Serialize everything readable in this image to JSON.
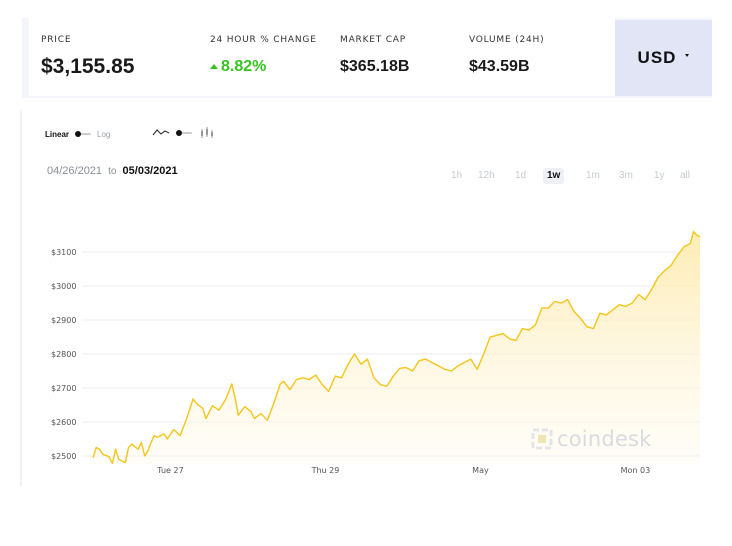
{
  "stats": {
    "price_label": "PRICE",
    "price_value": "$3,155.85",
    "change_label": "24 HOUR % CHANGE",
    "change_value": "8.82%",
    "cap_label": "MARKET CAP",
    "cap_value": "$365.18B",
    "volume_label": "VOLUME (24H)",
    "volume_value": "$43.59B",
    "currency": "USD"
  },
  "controls": {
    "scale_linear": "Linear",
    "scale_log": "Log",
    "date_start": "04/26/2021",
    "date_to": "to",
    "date_end": "05/03/2021",
    "ranges": [
      "1h",
      "12h",
      "1d",
      "1w",
      "1m",
      "3m",
      "1y",
      "all"
    ],
    "active_range": "1w",
    "watermark": "coindesk"
  },
  "colors": {
    "line": "#f5c518",
    "fill_top": "#fde9a6",
    "up": "#36c21f",
    "currency_bg": "#e1e5f5"
  },
  "chart_data": {
    "type": "area",
    "title": "",
    "xlabel": "",
    "ylabel": "",
    "ylim": [
      2470,
      3200
    ],
    "grid": true,
    "y_ticks": [
      2500,
      2600,
      2700,
      2800,
      2900,
      3000,
      3100
    ],
    "y_tick_labels": [
      "$2500",
      "$2600",
      "$2700",
      "$2800",
      "$2900",
      "$3000",
      "$3100"
    ],
    "x_range": [
      "2021-04-26T00:00",
      "2021-05-03T20:00"
    ],
    "x_ticks": [
      {
        "label": "Tue 27",
        "t": "2021-04-27T00:00"
      },
      {
        "label": "Thu 29",
        "t": "2021-04-29T00:00"
      },
      {
        "label": "May",
        "t": "2021-05-01T00:00"
      },
      {
        "label": "Mon 03",
        "t": "2021-05-03T00:00"
      }
    ],
    "series": [
      {
        "name": "",
        "x": [
          "2021-04-26T00:00",
          "2021-04-26T01:00",
          "2021-04-26T02:00",
          "2021-04-26T03:00",
          "2021-04-26T05:00",
          "2021-04-26T06:00",
          "2021-04-26T07:00",
          "2021-04-26T08:00",
          "2021-04-26T09:00",
          "2021-04-26T10:00",
          "2021-04-26T11:00",
          "2021-04-26T12:00",
          "2021-04-26T14:00",
          "2021-04-26T15:00",
          "2021-04-26T16:00",
          "2021-04-26T17:00",
          "2021-04-26T18:00",
          "2021-04-26T19:00",
          "2021-04-26T20:00",
          "2021-04-26T22:00",
          "2021-04-26T23:00",
          "2021-04-27T01:00",
          "2021-04-27T03:00",
          "2021-04-27T05:00",
          "2021-04-27T07:00",
          "2021-04-27T08:00",
          "2021-04-27T10:00",
          "2021-04-27T11:00",
          "2021-04-27T13:00",
          "2021-04-27T15:00",
          "2021-04-27T17:00",
          "2021-04-27T19:00",
          "2021-04-27T20:00",
          "2021-04-27T21:00",
          "2021-04-27T23:00",
          "2021-04-28T01:00",
          "2021-04-28T02:00",
          "2021-04-28T04:00",
          "2021-04-28T06:00",
          "2021-04-28T08:00",
          "2021-04-28T10:00",
          "2021-04-28T11:00",
          "2021-04-28T13:00",
          "2021-04-28T15:00",
          "2021-04-28T17:00",
          "2021-04-28T19:00",
          "2021-04-28T21:00",
          "2021-04-28T23:00",
          "2021-04-29T01:00",
          "2021-04-29T03:00",
          "2021-04-29T05:00",
          "2021-04-29T07:00",
          "2021-04-29T09:00",
          "2021-04-29T11:00",
          "2021-04-29T13:00",
          "2021-04-29T15:00",
          "2021-04-29T17:00",
          "2021-04-29T19:00",
          "2021-04-29T21:00",
          "2021-04-29T23:00",
          "2021-04-30T01:00",
          "2021-04-30T03:00",
          "2021-04-30T05:00",
          "2021-04-30T07:00",
          "2021-04-30T09:00",
          "2021-04-30T11:00",
          "2021-04-30T13:00",
          "2021-04-30T15:00",
          "2021-04-30T17:00",
          "2021-04-30T19:00",
          "2021-04-30T21:00",
          "2021-04-30T23:00",
          "2021-05-01T01:00",
          "2021-05-01T03:00",
          "2021-05-01T05:00",
          "2021-05-01T07:00",
          "2021-05-01T09:00",
          "2021-05-01T11:00",
          "2021-05-01T13:00",
          "2021-05-01T15:00",
          "2021-05-01T17:00",
          "2021-05-01T19:00",
          "2021-05-01T21:00",
          "2021-05-01T23:00",
          "2021-05-02T01:00",
          "2021-05-02T03:00",
          "2021-05-02T05:00",
          "2021-05-02T07:00",
          "2021-05-02T09:00",
          "2021-05-02T11:00",
          "2021-05-02T13:00",
          "2021-05-02T15:00",
          "2021-05-02T17:00",
          "2021-05-02T19:00",
          "2021-05-02T21:00",
          "2021-05-02T23:00",
          "2021-05-03T01:00",
          "2021-05-03T03:00",
          "2021-05-03T05:00",
          "2021-05-03T07:00",
          "2021-05-03T09:00",
          "2021-05-03T11:00",
          "2021-05-03T13:00",
          "2021-05-03T15:00",
          "2021-05-03T17:00",
          "2021-05-03T18:00",
          "2021-05-03T19:00",
          "2021-05-03T20:00"
        ],
        "y": [
          2495,
          2525,
          2520,
          2505,
          2498,
          2478,
          2520,
          2490,
          2485,
          2480,
          2525,
          2535,
          2520,
          2540,
          2500,
          2515,
          2540,
          2560,
          2555,
          2565,
          2550,
          2578,
          2560,
          2610,
          2668,
          2655,
          2640,
          2610,
          2648,
          2635,
          2665,
          2712,
          2672,
          2620,
          2645,
          2630,
          2610,
          2625,
          2605,
          2655,
          2712,
          2720,
          2695,
          2725,
          2730,
          2725,
          2738,
          2710,
          2690,
          2735,
          2730,
          2770,
          2800,
          2770,
          2785,
          2730,
          2710,
          2705,
          2735,
          2758,
          2760,
          2750,
          2780,
          2785,
          2775,
          2765,
          2755,
          2750,
          2765,
          2775,
          2785,
          2755,
          2800,
          2850,
          2855,
          2860,
          2845,
          2840,
          2875,
          2870,
          2885,
          2935,
          2935,
          2955,
          2950,
          2960,
          2925,
          2905,
          2880,
          2875,
          2920,
          2915,
          2930,
          2945,
          2940,
          2950,
          2975,
          2960,
          2990,
          3025,
          3045,
          3060,
          3090,
          3115,
          3125,
          3160,
          3150,
          3145
        ]
      }
    ]
  }
}
